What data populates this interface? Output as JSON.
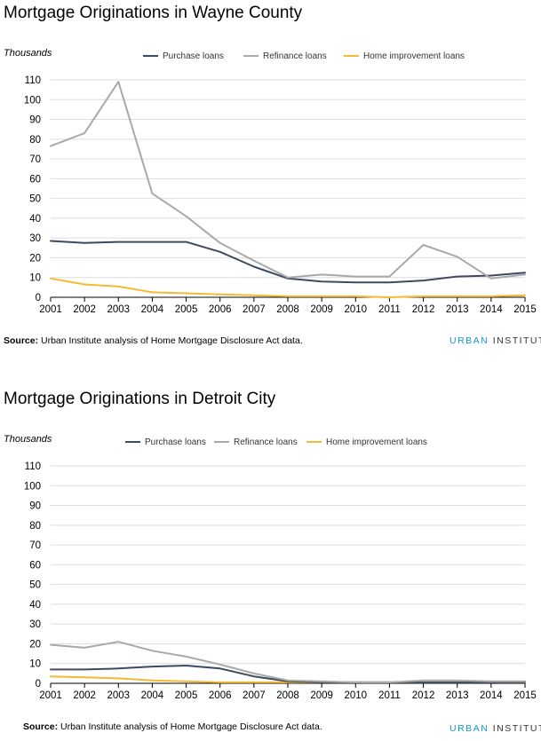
{
  "chart_data": [
    {
      "type": "line",
      "title": "Mortgage Originations in Wayne County",
      "ylabel": "Thousands",
      "xlabel": "",
      "x": [
        2001,
        2002,
        2003,
        2004,
        2005,
        2006,
        2007,
        2008,
        2009,
        2010,
        2011,
        2012,
        2013,
        2014,
        2015
      ],
      "ylim": [
        0,
        110
      ],
      "yticks": [
        0,
        10,
        20,
        30,
        40,
        50,
        60,
        70,
        80,
        90,
        100,
        110
      ],
      "grid": true,
      "legend": "top-center",
      "series": [
        {
          "name": "Purchase loans",
          "color": "#3d4a5f",
          "values": [
            28.5,
            27.5,
            28,
            28,
            28,
            23,
            15.5,
            9.5,
            8,
            7.5,
            7.5,
            8.5,
            10.5,
            11,
            12.5
          ]
        },
        {
          "name": "Refinance loans",
          "color": "#a9a9a9",
          "values": [
            76.5,
            83,
            109,
            52.5,
            41,
            27.5,
            18.5,
            10,
            11.5,
            10.5,
            10.5,
            26.5,
            20.5,
            9.5,
            11.5
          ]
        },
        {
          "name": "Home improvement loans",
          "color": "#f5b932",
          "values": [
            9.5,
            6.5,
            5.5,
            2.5,
            2,
            1.5,
            1,
            0.5,
            0.5,
            0.5,
            0,
            0.5,
            0.5,
            0.5,
            1
          ]
        }
      ],
      "source_label": "Source:",
      "source_text": " Urban Institute analysis of Home Mortgage Disclosure Act data.",
      "brand_a": "URBAN",
      "brand_b": "INSTITUTE"
    },
    {
      "type": "line",
      "title": "Mortgage Originations in Detroit City",
      "ylabel": "Thousands",
      "xlabel": "",
      "x": [
        2001,
        2002,
        2003,
        2004,
        2005,
        2006,
        2007,
        2008,
        2009,
        2010,
        2011,
        2012,
        2013,
        2014,
        2015
      ],
      "ylim": [
        0,
        110
      ],
      "yticks": [
        0,
        10,
        20,
        30,
        40,
        50,
        60,
        70,
        80,
        90,
        100,
        110
      ],
      "grid": true,
      "legend": "top-center",
      "series": [
        {
          "name": "Purchase loans",
          "color": "#3d4a5f",
          "values": [
            7,
            7,
            7.5,
            8.5,
            9,
            7.5,
            3.5,
            1,
            0.5,
            0.5,
            0.5,
            0.5,
            0.5,
            0.5,
            0.5
          ]
        },
        {
          "name": "Refinance loans",
          "color": "#a9a9a9",
          "values": [
            19.5,
            18,
            21,
            16.5,
            13.5,
            9.5,
            5,
            1.5,
            1,
            0.5,
            0.5,
            1.5,
            1.5,
            1,
            1
          ]
        },
        {
          "name": "Home improvement loans",
          "color": "#f5b932",
          "values": [
            3.5,
            3,
            2.5,
            1.5,
            1,
            0.5,
            0.5,
            0.5,
            0.5,
            0.5,
            0.5,
            0.5,
            0.5,
            0.5,
            0.5
          ]
        }
      ],
      "source_label": "Source:",
      "source_text": " Urban Institute analysis of Home Mortgage Disclosure Act data.",
      "brand_a": "URBAN",
      "brand_b": "INSTITUTE"
    }
  ]
}
